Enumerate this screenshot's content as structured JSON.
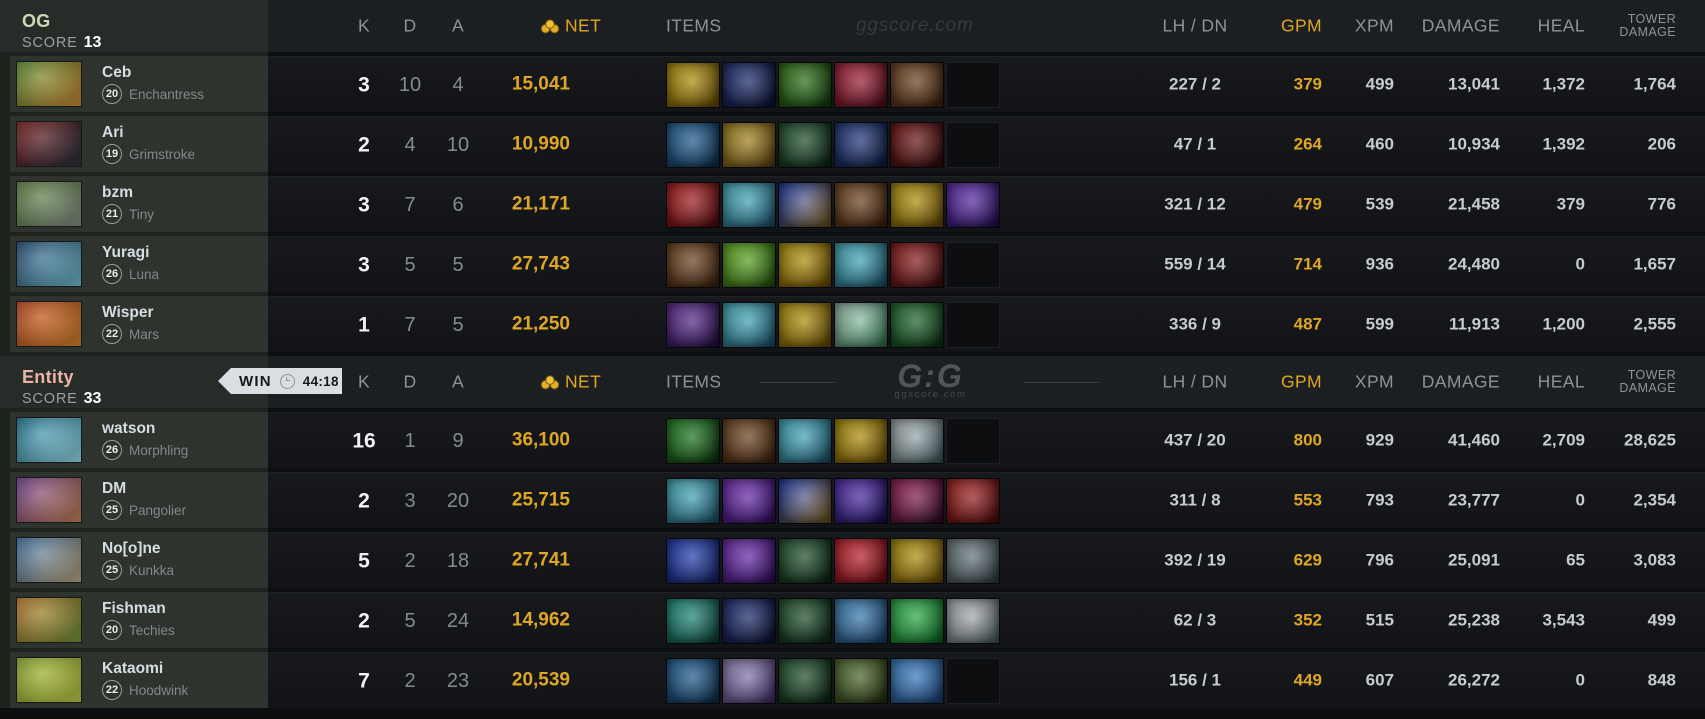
{
  "labels": {
    "score": "SCORE",
    "k": "K",
    "d": "D",
    "a": "A",
    "net": "NET",
    "items": "ITEMS",
    "lh_dn": "LH / DN",
    "gpm": "GPM",
    "xpm": "XPM",
    "damage": "DAMAGE",
    "heal": "HEAL",
    "tower_line1": "TOWER",
    "tower_line2": "DAMAGE"
  },
  "watermark": {
    "site": "ggscore.com",
    "logo": "G:G"
  },
  "badge": {
    "result": "WIN",
    "duration": "44:18"
  },
  "colors": {
    "gold": "#dfa723",
    "og_name": "#ccdab4",
    "entity_name": "#e9b3a7",
    "badge_bg": "#d9dee2"
  },
  "teams": [
    {
      "name": "OG",
      "name_color": "#ccdab4",
      "score": "13",
      "players": [
        {
          "name": "Ceb",
          "level": "20",
          "hero": "Enchantress",
          "k": "3",
          "d": "10",
          "a": "4",
          "net": "15,041",
          "lh_dn": "227 / 2",
          "gpm": "379",
          "xpm": "499",
          "damage": "13,041",
          "heal": "1,372",
          "tower_damage": "1,764",
          "portrait": [
            "#5a8a2f",
            "#d4913a"
          ],
          "items": [
            [
              "#d8b514",
              "#7a5a06"
            ],
            [
              "#2a3d8f",
              "#10173d"
            ],
            [
              "#3f8f1f",
              "#174a12"
            ],
            [
              "#c92f4a",
              "#5f0f1f"
            ],
            [
              "#8a5a2f",
              "#4a2a12"
            ],
            "empty"
          ]
        },
        {
          "name": "Ari",
          "level": "19",
          "hero": "Grimstroke",
          "k": "2",
          "d": "4",
          "a": "10",
          "net": "10,990",
          "lh_dn": "47 / 1",
          "gpm": "264",
          "xpm": "460",
          "damage": "10,934",
          "heal": "1,392",
          "tower_damage": "206",
          "portrait": [
            "#7a1f1f",
            "#2a3440"
          ],
          "items": [
            [
              "#2f7ab5",
              "#123a5f"
            ],
            [
              "#c9a82f",
              "#6f4f14"
            ],
            [
              "#2f6a3f",
              "#10301a"
            ],
            [
              "#2f4d9f",
              "#141f4a"
            ],
            [
              "#8f2020",
              "#3a0f0f"
            ],
            "empty"
          ]
        },
        {
          "name": "bzm",
          "level": "21",
          "hero": "Tiny",
          "k": "3",
          "d": "7",
          "a": "6",
          "net": "21,171",
          "lh_dn": "321 / 12",
          "gpm": "479",
          "xpm": "539",
          "damage": "21,458",
          "heal": "379",
          "tower_damage": "776",
          "portrait": [
            "#5d7a3a",
            "#8a9a8c"
          ],
          "items": [
            [
              "#d42a2a",
              "#5f0f14"
            ],
            [
              "#5fd8e8",
              "#1f5f7a"
            ],
            [
              "#2f4fd4",
              "#8a6a1f"
            ],
            [
              "#8a5a2f",
              "#4a2a12"
            ],
            [
              "#d8b514",
              "#7a5a06"
            ],
            [
              "#7a3fd4",
              "#2a1060"
            ]
          ]
        },
        {
          "name": "Yuragi",
          "level": "26",
          "hero": "Luna",
          "k": "3",
          "d": "5",
          "a": "5",
          "net": "27,743",
          "lh_dn": "559 / 14",
          "gpm": "714",
          "xpm": "936",
          "damage": "24,480",
          "heal": "0",
          "tower_damage": "1,657",
          "portrait": [
            "#24486e",
            "#79c7d8"
          ],
          "items": [
            [
              "#8a5a2f",
              "#4a2a12"
            ],
            [
              "#7ad42f",
              "#2a6012"
            ],
            [
              "#d8b514",
              "#7a5a06"
            ],
            [
              "#5fd8e8",
              "#1f5f7a"
            ],
            [
              "#b52a2a",
              "#4a0f0f"
            ],
            "empty"
          ]
        },
        {
          "name": "Wisper",
          "level": "22",
          "hero": "Mars",
          "k": "1",
          "d": "7",
          "a": "5",
          "net": "21,250",
          "lh_dn": "336 / 9",
          "gpm": "487",
          "xpm": "599",
          "damage": "11,913",
          "heal": "1,200",
          "tower_damage": "2,555",
          "portrait": [
            "#b5471f",
            "#e08a2f"
          ],
          "items": [
            [
              "#7a3fb5",
              "#2a1050"
            ],
            [
              "#5fd8e8",
              "#1f5f7a"
            ],
            [
              "#d8b514",
              "#7a5a06"
            ],
            [
              "#bfe8d8",
              "#3f8a5a"
            ],
            [
              "#2f8a3f",
              "#0f3a1a"
            ],
            "empty"
          ]
        }
      ]
    },
    {
      "name": "Entity",
      "name_color": "#e9b3a7",
      "score": "33",
      "players": [
        {
          "name": "watson",
          "level": "26",
          "hero": "Morphling",
          "k": "16",
          "d": "1",
          "a": "9",
          "net": "36,100",
          "lh_dn": "437 / 20",
          "gpm": "800",
          "xpm": "929",
          "damage": "41,460",
          "heal": "2,709",
          "tower_damage": "28,625",
          "portrait": [
            "#1f6f8a",
            "#9fe8f5"
          ],
          "items": [
            [
              "#2fa02f",
              "#0f3f12"
            ],
            [
              "#8a5a2f",
              "#4a2a12"
            ],
            [
              "#5fd8e8",
              "#1f5f7a"
            ],
            [
              "#d8b514",
              "#7a5a06"
            ],
            [
              "#cfd8da",
              "#4f6a70"
            ],
            "empty"
          ]
        },
        {
          "name": "DM",
          "level": "25",
          "hero": "Pangolier",
          "k": "2",
          "d": "3",
          "a": "20",
          "net": "25,715",
          "lh_dn": "311 / 8",
          "gpm": "553",
          "xpm": "793",
          "damage": "23,777",
          "heal": "0",
          "tower_damage": "2,354",
          "portrait": [
            "#6e3d8c",
            "#d08a5a"
          ],
          "items": [
            [
              "#5fd8e8",
              "#1f5f7a"
            ],
            [
              "#8a3fd4",
              "#3a1070"
            ],
            [
              "#2f4fd4",
              "#8a6a1f"
            ],
            [
              "#6a3fd4",
              "#1f1060"
            ],
            [
              "#b52a6a",
              "#3a0f2a"
            ],
            [
              "#c92f2f",
              "#5a0f0f"
            ]
          ]
        },
        {
          "name": "No[o]ne",
          "level": "25",
          "hero": "Kunkka",
          "k": "5",
          "d": "2",
          "a": "18",
          "net": "27,741",
          "lh_dn": "392 / 19",
          "gpm": "629",
          "xpm": "796",
          "damage": "25,091",
          "heal": "65",
          "tower_damage": "3,083",
          "portrait": [
            "#3a6fa0",
            "#c9b08a"
          ],
          "items": [
            [
              "#2f4fd4",
              "#1a2a7a"
            ],
            [
              "#8a3fd4",
              "#3a1070"
            ],
            [
              "#2f6a3f",
              "#10301a"
            ],
            [
              "#e82f3f",
              "#7a0f14"
            ],
            [
              "#d8b514",
              "#7a5a06"
            ],
            [
              "#8a9aa0",
              "#3a4a50"
            ]
          ]
        },
        {
          "name": "Fishman",
          "level": "20",
          "hero": "Techies",
          "k": "2",
          "d": "5",
          "a": "24",
          "net": "14,962",
          "lh_dn": "62 / 3",
          "gpm": "352",
          "xpm": "515",
          "damage": "25,238",
          "heal": "3,543",
          "tower_damage": "499",
          "portrait": [
            "#b5772a",
            "#7a9a3f"
          ],
          "items": [
            [
              "#2fb5a0",
              "#0f4a40"
            ],
            [
              "#2a3d8f",
              "#10173d"
            ],
            [
              "#2f6a3f",
              "#10301a"
            ],
            [
              "#4fa0d8",
              "#1f4a7a"
            ],
            [
              "#3fd45f",
              "#127a2a"
            ],
            [
              "#d8dade",
              "#5a6a70"
            ]
          ]
        },
        {
          "name": "Kataomi",
          "level": "22",
          "hero": "Hoodwink",
          "k": "7",
          "d": "2",
          "a": "23",
          "net": "20,539",
          "lh_dn": "156 / 1",
          "gpm": "449",
          "xpm": "607",
          "damage": "26,272",
          "heal": "0",
          "tower_damage": "848",
          "portrait": [
            "#8aa32f",
            "#c9d44a"
          ],
          "items": [
            [
              "#2f7ab5",
              "#123a5f"
            ],
            [
              "#b5a0d8",
              "#4a3a7a"
            ],
            [
              "#2f6a3f",
              "#10301a"
            ],
            [
              "#6a8a3f",
              "#2a3a14"
            ],
            [
              "#4fa0e8",
              "#1f4a8a"
            ],
            "empty"
          ]
        }
      ]
    }
  ]
}
